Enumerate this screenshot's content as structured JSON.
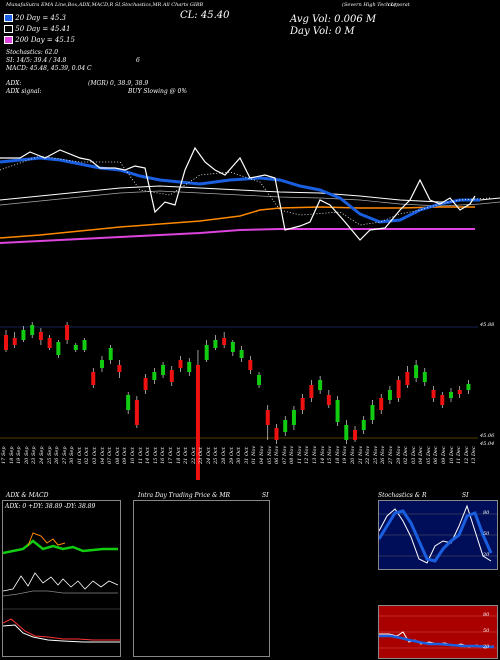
{
  "header": {
    "line1": "MunafaSutra EMA Line,Box,ADX,MACD,R   SI,Stochastics,MR   All Charts GIBB",
    "company": "(Severn High Tech L)",
    "corporat": "corporat",
    "close": "CL: 45.40",
    "avg_vol": "Avg Vol: 0.006  M",
    "day_vol": "Day Vol: 0  M"
  },
  "legend": {
    "ema20": "20  Day = 45.3",
    "ema50": "50  Day = 45.41",
    "ema200": "200  Day = 45.15",
    "stochastics": "Stochastics: 62.0",
    "si": "SI: 14/5: 39.4  / 34.8",
    "si_right": "6",
    "macd_title": "MACD: 45.48, 45.39, 0.04  C",
    "adx": "ADX:",
    "adx_vals": "(MGR) 0, 38.9, 38.9",
    "adx_signal": "ADX  signal:",
    "buy_signal": "BUY Slowing @ 0%"
  },
  "colors": {
    "ema20": "#1a5fe0",
    "ema50": "#ffffff",
    "ema200": "#dd44dd",
    "orange": "#ff8800",
    "up": "#11cc11",
    "down": "#ee1111"
  },
  "price_axis": {
    "top_label": "45.88",
    "bottom_label1": "45.06",
    "bottom_label2": "45.04"
  },
  "dates": [
    "17 Sep",
    "18 Sep",
    "19 Sep",
    "20 Sep",
    "23 Sep",
    "24 Sep",
    "25 Sep",
    "26 Sep",
    "27 Sep",
    "30 Sep",
    "01 Oct",
    "02 Oct",
    "03 Oct",
    "04 Oct",
    "07 Oct",
    "08 Oct",
    "09 Oct",
    "10 Oct",
    "11 Oct",
    "14 Oct",
    "15 Oct",
    "16 Oct",
    "17 Oct",
    "18 Oct",
    "21 Oct",
    "22 Oct",
    "23 Oct",
    "24 Oct",
    "25 Oct",
    "28 Oct",
    "29 Oct",
    "30 Oct",
    "31 Oct",
    "01 Nov",
    "04 Nov",
    "05 Nov",
    "06 Nov",
    "07 Nov",
    "08 Nov",
    "11 Nov",
    "12 Nov",
    "13 Nov",
    "14 Nov",
    "15 Nov",
    "18 Nov",
    "19 Nov",
    "20 Nov",
    "21 Nov",
    "22 Nov",
    "25 Nov",
    "26 Nov",
    "27 Nov",
    "29 Nov",
    "02 Dec",
    "03 Dec",
    "04 Dec",
    "05 Dec",
    "06 Dec",
    "09 Dec",
    "10 Dec",
    "11 Dec",
    "12 Dec",
    "13 Dec"
  ],
  "panels": {
    "adx_title": "ADX  & MACD",
    "intra_title": "Intra  Day Trading Price  & MR",
    "intra_si": "SI",
    "stoch_title": "Stochastics & R",
    "stoch_si": "SI",
    "adx_readout": "ADX: 0  +DY: 38.89  -DY: 38.89",
    "stoch_levels": [
      "80",
      "50",
      "20"
    ],
    "rsi_levels": [
      "80",
      "50",
      "20"
    ]
  }
}
